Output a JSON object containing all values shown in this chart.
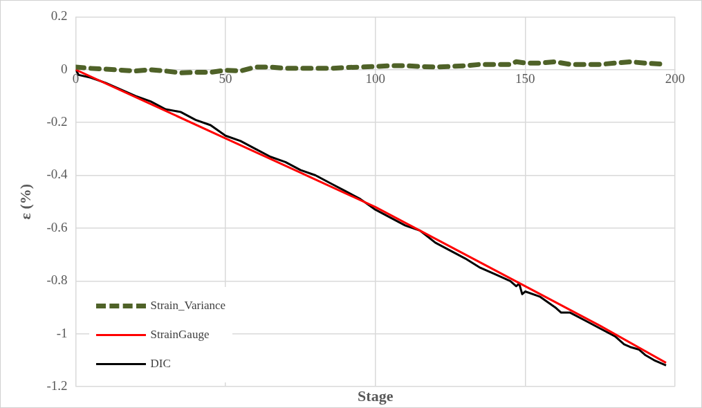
{
  "chart_data": {
    "type": "line",
    "xlabel": "Stage",
    "ylabel": "ε (%)",
    "xlim": [
      0,
      200
    ],
    "xticks": [
      0,
      50,
      100,
      150,
      200
    ],
    "ylim": [
      -1.2,
      0.2
    ],
    "yticks": [
      -1.2,
      -1,
      -0.8,
      -0.6,
      -0.4,
      -0.2,
      0,
      0.2
    ],
    "grid": true,
    "legend": "bottom left",
    "marker": "none",
    "series": [
      {
        "name": "Strain_Variance",
        "color": "#4f6228",
        "line_style": "dashed",
        "x": [
          0,
          5,
          10,
          20,
          25,
          30,
          35,
          40,
          45,
          50,
          55,
          60,
          65,
          70,
          75,
          80,
          85,
          90,
          95,
          100,
          105,
          110,
          115,
          120,
          125,
          130,
          135,
          140,
          145,
          147,
          150,
          155,
          160,
          165,
          170,
          175,
          180,
          185,
          190,
          197
        ],
        "values": [
          0.01,
          0.005,
          0.002,
          -0.005,
          0,
          -0.005,
          -0.012,
          -0.01,
          -0.01,
          -0.002,
          -0.005,
          0.01,
          0.01,
          0.005,
          0.005,
          0.005,
          0.005,
          0.008,
          0.01,
          0.012,
          0.015,
          0.015,
          0.012,
          0.01,
          0.012,
          0.015,
          0.02,
          0.02,
          0.02,
          0.03,
          0.025,
          0.025,
          0.03,
          0.02,
          0.02,
          0.02,
          0.025,
          0.03,
          0.025,
          0.02
        ]
      },
      {
        "name": "StrainGauge",
        "color": "#ff0000",
        "line_style": "solid",
        "x": [
          0,
          25,
          50,
          75,
          100,
          125,
          150,
          175,
          197
        ],
        "values": [
          0,
          -0.13,
          -0.26,
          -0.39,
          -0.52,
          -0.67,
          -0.82,
          -0.97,
          -1.11
        ]
      },
      {
        "name": "DIC",
        "color": "#000000",
        "line_style": "solid",
        "x": [
          0,
          1,
          5,
          10,
          20,
          25,
          30,
          35,
          40,
          45,
          50,
          55,
          60,
          65,
          70,
          75,
          80,
          85,
          90,
          95,
          100,
          105,
          110,
          115,
          120,
          125,
          130,
          135,
          140,
          145,
          147,
          148,
          149,
          150,
          155,
          160,
          162,
          165,
          170,
          175,
          180,
          183,
          185,
          188,
          190,
          193,
          197
        ],
        "values": [
          0,
          -0.02,
          -0.03,
          -0.05,
          -0.1,
          -0.12,
          -0.15,
          -0.16,
          -0.19,
          -0.21,
          -0.25,
          -0.27,
          -0.3,
          -0.33,
          -0.35,
          -0.38,
          -0.4,
          -0.43,
          -0.46,
          -0.49,
          -0.53,
          -0.56,
          -0.59,
          -0.61,
          -0.655,
          -0.685,
          -0.715,
          -0.75,
          -0.775,
          -0.8,
          -0.82,
          -0.81,
          -0.85,
          -0.84,
          -0.86,
          -0.9,
          -0.92,
          -0.92,
          -0.95,
          -0.98,
          -1.01,
          -1.04,
          -1.05,
          -1.06,
          -1.08,
          -1.1,
          -1.12
        ]
      }
    ]
  }
}
